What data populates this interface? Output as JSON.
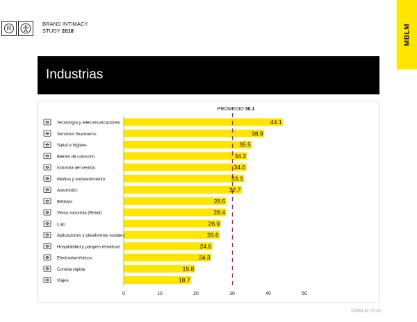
{
  "header": {
    "study_line1": "BRAND INTIMACY",
    "study_line2_prefix": "STUDY",
    "study_line2_year": "2018",
    "brand_tab": "MBLM",
    "logo_r": "R"
  },
  "banner": {
    "title": "Industrias"
  },
  "footer": {
    "copyright": "©MBLM 2018"
  },
  "colors": {
    "bar": "#ffe500",
    "average_line": "#c2185b",
    "banner": "#000000"
  },
  "chart_data": {
    "type": "bar",
    "orientation": "horizontal",
    "categories": [
      "Tecnología y telecomunicaciones",
      "Servicios financieros",
      "Salud e higiene",
      "Bienes de consumo",
      "Industria del vestido",
      "Medios y entretenimiento",
      "Automotriz",
      "Bebidas",
      "Venta minorista (Retail)",
      "Lujo",
      "Aplicaciones y plataformas sociales",
      "Hospitalidad y parques temáticos",
      "Electrodomésticos",
      "Comida rápida",
      "Viajes"
    ],
    "icons": [
      "telecom-icon",
      "finance-icon",
      "health-icon",
      "consumer-goods-icon",
      "apparel-icon",
      "media-icon",
      "automotive-icon",
      "beverages-icon",
      "retail-icon",
      "luxury-icon",
      "social-apps-icon",
      "hospitality-icon",
      "appliances-icon",
      "fast-food-icon",
      "travel-icon"
    ],
    "values": [
      44.1,
      38.9,
      35.5,
      34.2,
      34.0,
      33.3,
      32.7,
      28.5,
      28.4,
      26.9,
      26.6,
      24.6,
      24.3,
      19.8,
      18.7
    ],
    "value_labels": [
      "44.1",
      "38.9",
      "35.5",
      "34.2",
      "34.0",
      "33.3",
      "32.7",
      "28.5",
      "28.4",
      "26.9",
      "26.6",
      "24.6",
      "24.3",
      "19.8",
      "18.7"
    ],
    "average": {
      "label": "PROMEDIO",
      "value": 30.1,
      "value_label": "30.1"
    },
    "xlim": [
      0,
      50
    ],
    "xticks": [
      0,
      10,
      20,
      30,
      40,
      50
    ],
    "grid": false,
    "legend": "none"
  }
}
